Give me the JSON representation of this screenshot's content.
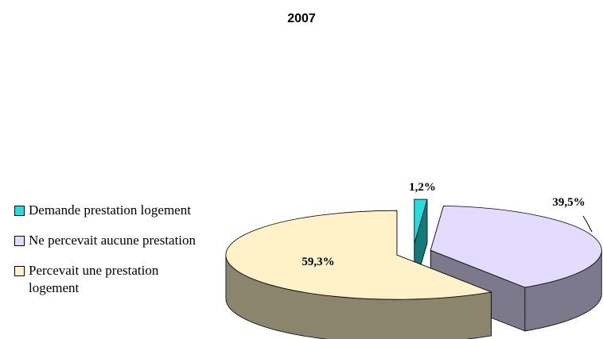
{
  "chart_data": {
    "type": "pie",
    "title": "2007",
    "categories": [
      "Demande prestation logement",
      "Ne percevait aucune prestation",
      "Percevait une prestation logement"
    ],
    "values": [
      1.2,
      39.5,
      59.3
    ],
    "value_labels": [
      "1,2%",
      "39,5%",
      "59,3%"
    ],
    "colors": [
      "#1fe0e0",
      "#e4dcff",
      "#fff2c8"
    ],
    "legend": "left"
  }
}
